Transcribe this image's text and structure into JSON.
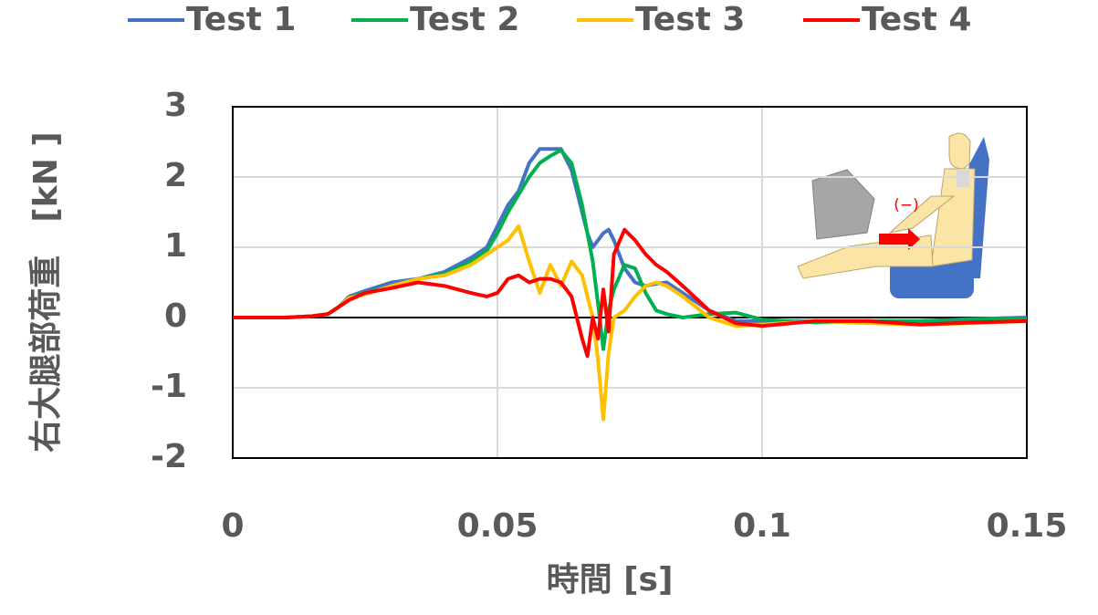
{
  "chart_data": {
    "type": "line",
    "x_label": "時間 [s]",
    "y_label": "右大腿部荷重　[kN ]",
    "inset_label": "(−)",
    "x": [
      0,
      0.005,
      0.01,
      0.015,
      0.018,
      0.02,
      0.022,
      0.025,
      0.03,
      0.035,
      0.04,
      0.045,
      0.048,
      0.05,
      0.052,
      0.054,
      0.056,
      0.058,
      0.06,
      0.062,
      0.064,
      0.066,
      0.067,
      0.068,
      0.069,
      0.07,
      0.071,
      0.072,
      0.074,
      0.076,
      0.078,
      0.08,
      0.082,
      0.085,
      0.09,
      0.095,
      0.1,
      0.11,
      0.12,
      0.13,
      0.14,
      0.15
    ],
    "series": [
      {
        "name": "Test 1",
        "color": "#4472c4",
        "values": [
          0,
          0,
          0,
          0.02,
          0.05,
          0.15,
          0.3,
          0.38,
          0.5,
          0.55,
          0.65,
          0.85,
          1.0,
          1.3,
          1.6,
          1.8,
          2.2,
          2.4,
          2.4,
          2.4,
          2.1,
          1.5,
          1.2,
          1.0,
          1.1,
          1.2,
          1.25,
          1.1,
          0.7,
          0.5,
          0.45,
          0.48,
          0.5,
          0.35,
          0.1,
          -0.05,
          -0.05,
          -0.05,
          -0.08,
          -0.05,
          -0.02,
          0
        ]
      },
      {
        "name": "Test 2",
        "color": "#00b050",
        "values": [
          0,
          0,
          0,
          0.02,
          0.05,
          0.15,
          0.28,
          0.35,
          0.45,
          0.55,
          0.62,
          0.8,
          0.95,
          1.2,
          1.5,
          1.75,
          2.0,
          2.2,
          2.3,
          2.38,
          2.2,
          1.6,
          1.2,
          0.8,
          0.2,
          -0.45,
          0.1,
          0.4,
          0.75,
          0.7,
          0.35,
          0.1,
          0.05,
          0,
          0.05,
          0.07,
          -0.03,
          -0.07,
          -0.05,
          -0.05,
          -0.03,
          -0.02
        ]
      },
      {
        "name": "Test 3",
        "color": "#ffc000",
        "values": [
          0,
          0,
          0,
          0.02,
          0.05,
          0.15,
          0.28,
          0.33,
          0.45,
          0.55,
          0.6,
          0.75,
          0.9,
          1.0,
          1.1,
          1.3,
          0.8,
          0.35,
          0.75,
          0.45,
          0.8,
          0.6,
          0.3,
          0,
          -0.6,
          -1.45,
          -0.5,
          0,
          0.1,
          0.3,
          0.45,
          0.5,
          0.45,
          0.3,
          0,
          -0.12,
          -0.1,
          -0.05,
          -0.08,
          -0.1,
          -0.08,
          -0.05
        ]
      },
      {
        "name": "Test 4",
        "color": "#ff0000",
        "values": [
          0,
          0,
          0,
          0.02,
          0.05,
          0.15,
          0.25,
          0.35,
          0.42,
          0.5,
          0.45,
          0.35,
          0.3,
          0.35,
          0.55,
          0.6,
          0.5,
          0.55,
          0.55,
          0.5,
          0.3,
          -0.3,
          -0.55,
          0,
          -0.3,
          0.4,
          -0.2,
          0.9,
          1.25,
          1.1,
          0.9,
          0.75,
          0.65,
          0.45,
          0.1,
          -0.08,
          -0.12,
          -0.05,
          -0.05,
          -0.1,
          -0.07,
          -0.05
        ]
      }
    ],
    "xlim": [
      0,
      0.15
    ],
    "xticks": [
      0,
      0.05,
      0.1,
      0.15
    ],
    "ylim": [
      -2,
      3
    ],
    "yticks": [
      -2,
      -1,
      0,
      1,
      2,
      3
    ],
    "grid": true
  }
}
